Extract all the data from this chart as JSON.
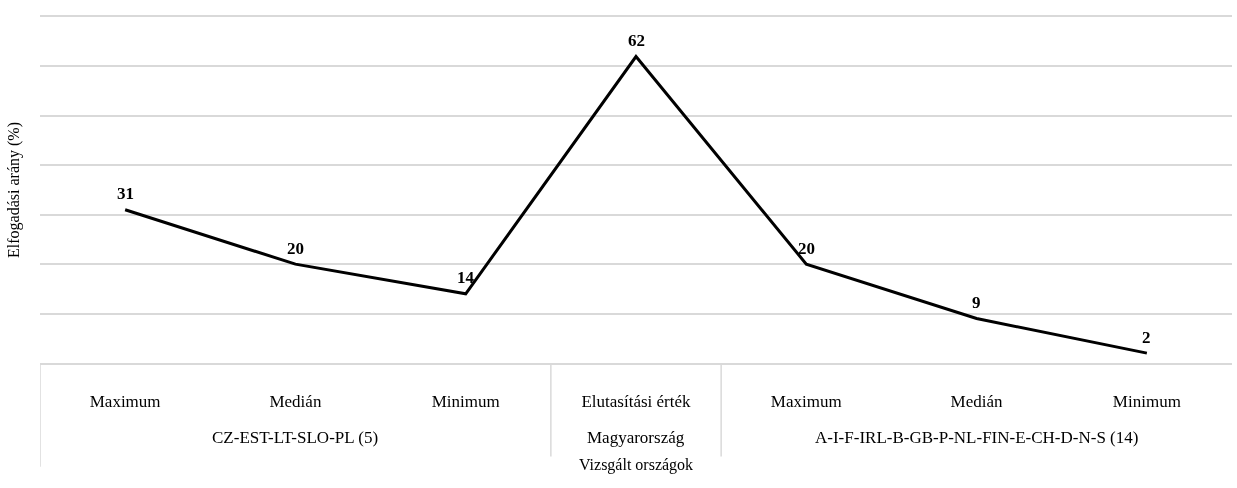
{
  "chart_data": {
    "type": "line",
    "xlabel": "Vizsgált országok",
    "ylabel": "Elfogadási arány (%)",
    "categories": [
      "Maximum",
      "Medián",
      "Minimum",
      "Elutasítási érték",
      "Maximum",
      "Medián",
      "Minimum"
    ],
    "series": [
      {
        "color": "#000000",
        "values": [
          31,
          20,
          14,
          62,
          20,
          9,
          2
        ]
      }
    ],
    "ylim": [
      0,
      70
    ],
    "yticks": [
      {
        "value": 0,
        "label": null
      },
      {
        "value": 10,
        "label": null
      },
      {
        "value": 20,
        "label": null
      },
      {
        "value": 30,
        "label": null
      },
      {
        "value": 40,
        "label": null
      },
      {
        "value": 50,
        "label": null
      },
      {
        "value": 60,
        "label": null
      }
    ],
    "annotations": [
      "CZ-EST-LT-SLO-PL (5)",
      "Magyarország",
      "A-I-F-IRL-B-GB-P-NL-FIN-E-CH-D-N-S (14)"
    ],
    "grid": "y",
    "tick_labels": "x",
    "data_labels": true,
    "marker": "none",
    "line_style": "solid"
  }
}
